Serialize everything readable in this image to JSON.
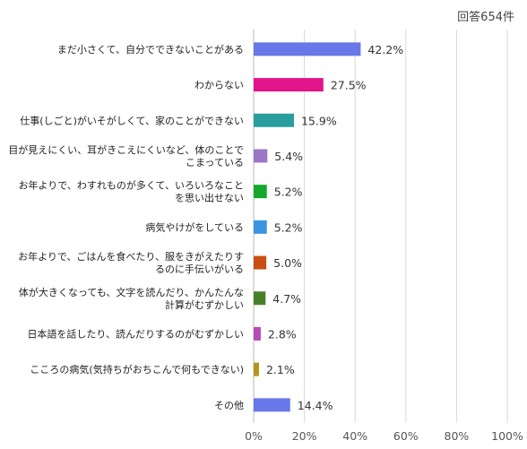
{
  "note": "回答654件",
  "chart_data": {
    "type": "bar",
    "orientation": "horizontal",
    "xlim": [
      0,
      100
    ],
    "x_ticks": [
      "0%",
      "20%",
      "40%",
      "60%",
      "80%",
      "100%"
    ],
    "grid": true,
    "value_suffix": "%",
    "categories": [
      [
        "まだ小さくて、自分でできないことがある"
      ],
      [
        "わからない"
      ],
      [
        "仕事(しごと)がいそがしくて、家のことができない"
      ],
      [
        "目が見えにくい、耳がきこえにくいなど、体のことで",
        "こまっている"
      ],
      [
        "お年よりで、わすれものが多くて、いろいろなこと",
        "を思い出せない"
      ],
      [
        "病気やけがをしている"
      ],
      [
        "お年よりで、ごはんを食べたり、服をきがえたりす",
        "るのに手伝いがいる"
      ],
      [
        "体が大きくなっても、文字を読んだり、かんたんな",
        "計算がむずかしい"
      ],
      [
        "日本語を話したり、読んだりするのがむずかしい"
      ],
      [
        "こころの病気(気持ちがおちこんで何もできない)"
      ],
      [
        "その他"
      ]
    ],
    "values": [
      42.2,
      27.5,
      15.9,
      5.4,
      5.2,
      5.2,
      5.0,
      4.7,
      2.8,
      2.1,
      14.4
    ],
    "value_labels": [
      "42.2%",
      "27.5%",
      "15.9%",
      "5.4%",
      "5.2%",
      "5.2%",
      "5.0%",
      "4.7%",
      "2.8%",
      "2.1%",
      "14.4%"
    ],
    "colors": [
      "#6878e8",
      "#e0158a",
      "#2a9e9e",
      "#9b78c4",
      "#16a82c",
      "#3b94e0",
      "#c94e12",
      "#4a7f2a",
      "#b84ab8",
      "#b5951a",
      "#6878e8"
    ]
  }
}
